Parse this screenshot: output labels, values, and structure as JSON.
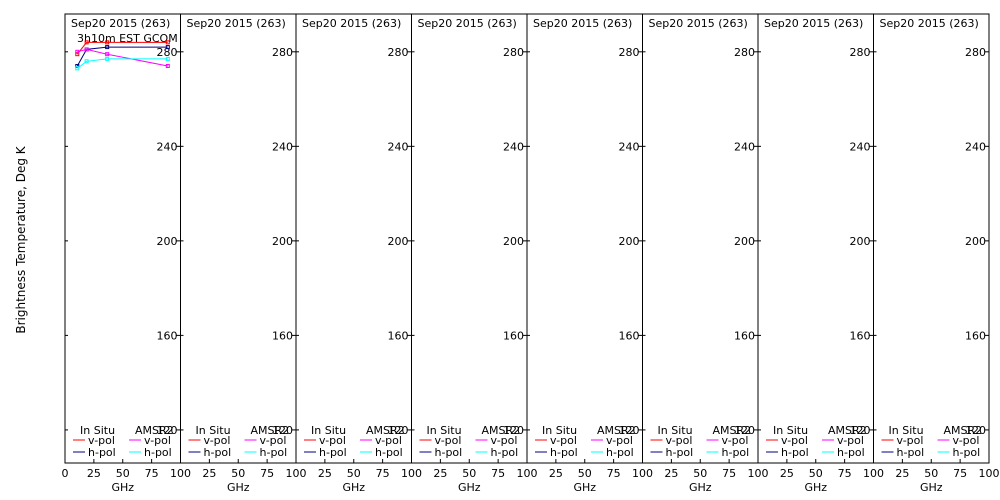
{
  "figure": {
    "ylabel": "Brightness Temperature, Deg K",
    "panel_count": 8
  },
  "legend": {
    "insitu_header": "In Situ",
    "amsr2_header": "AMSR2",
    "v_pol": "v-pol",
    "h_pol": "h-pol"
  },
  "colors": {
    "insitu_v": "#ff0000",
    "insitu_h": "#000080",
    "amsr2_v": "#ff00ff",
    "amsr2_h": "#00ffff",
    "axes": "#000000",
    "background": "#ffffff"
  },
  "chart_data": {
    "type": "line",
    "xlabel": "GHz",
    "ylabel": "Brightness Temperature, Deg K",
    "xlim": [
      0,
      100
    ],
    "ylim": [
      106,
      296
    ],
    "xticks": [
      0,
      25,
      50,
      75,
      100
    ],
    "yticks": [
      120,
      160,
      200,
      240,
      280
    ],
    "grid": false,
    "legend_position": "bottom",
    "panels": [
      {
        "title": "Sep20 2015 (263)",
        "subtitle": "3h10m EST GCOM",
        "series": [
          {
            "name": "In Situ v-pol",
            "x": [
              10.65,
              18.7,
              36.5,
              89.0
            ],
            "y": [
              279,
              284,
              284,
              284
            ]
          },
          {
            "name": "In Situ h-pol",
            "x": [
              10.65,
              18.7,
              36.5,
              89.0
            ],
            "y": [
              274,
              281,
              282,
              282
            ]
          },
          {
            "name": "AMSR2 v-pol",
            "x": [
              10.65,
              18.7,
              36.5,
              89.0
            ],
            "y": [
              280,
              281,
              279,
              274
            ]
          },
          {
            "name": "AMSR2 h-pol",
            "x": [
              10.65,
              18.7,
              36.5,
              89.0
            ],
            "y": [
              273,
              276,
              277,
              277
            ]
          }
        ]
      },
      {
        "title": "Sep20 2015 (263)",
        "subtitle": "",
        "series": []
      },
      {
        "title": "Sep20 2015 (263)",
        "subtitle": "",
        "series": []
      },
      {
        "title": "Sep20 2015 (263)",
        "subtitle": "",
        "series": []
      },
      {
        "title": "Sep20 2015 (263)",
        "subtitle": "",
        "series": []
      },
      {
        "title": "Sep20 2015 (263)",
        "subtitle": "",
        "series": []
      },
      {
        "title": "Sep20 2015 (263)",
        "subtitle": "",
        "series": []
      },
      {
        "title": "Sep20 2015 (263)",
        "subtitle": "",
        "series": []
      }
    ]
  }
}
